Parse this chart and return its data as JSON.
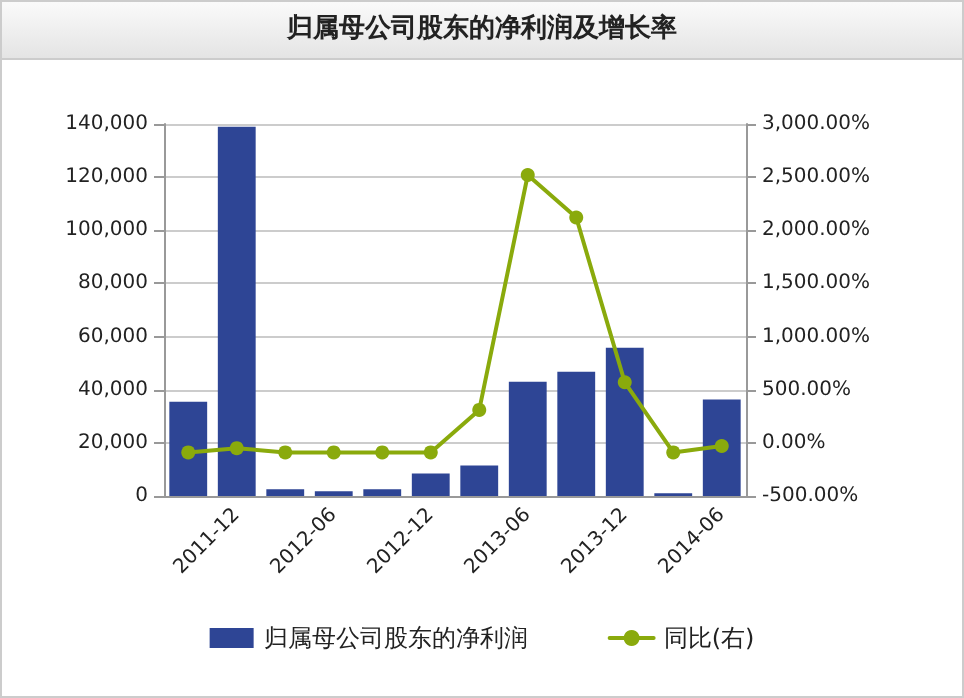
{
  "chart_data": {
    "type": "bar",
    "title": "归属母公司股东的净利润及增长率",
    "categories": [
      null,
      "2011-12",
      null,
      "2012-06",
      null,
      "2012-12",
      null,
      "2013-06",
      null,
      "2013-12",
      null,
      "2014-06"
    ],
    "series": [
      {
        "name": "归属母公司股东的净利润",
        "color": "#2e4595",
        "values": [
          35500,
          139000,
          2500,
          1800,
          2500,
          8500,
          11500,
          43000,
          46800,
          55800,
          1000,
          36300
        ]
      },
      {
        "name": "同比(右)",
        "type": "line",
        "axis": "y2",
        "color": "#8aaa0c",
        "values": [
          -90,
          -50,
          -90,
          -90,
          -90,
          -90,
          310,
          2520,
          2120,
          570,
          -90,
          -30
        ]
      }
    ],
    "ylim": [
      0,
      140000
    ],
    "yticks": [
      {
        "value": 0,
        "label": "0"
      },
      {
        "value": 20000,
        "label": "20,000"
      },
      {
        "value": 40000,
        "label": "40,000"
      },
      {
        "value": 60000,
        "label": "60,000"
      },
      {
        "value": 80000,
        "label": "80,000"
      },
      {
        "value": 100000,
        "label": "100,000"
      },
      {
        "value": 120000,
        "label": "120,000"
      },
      {
        "value": 140000,
        "label": "140,000"
      }
    ],
    "y2lim": [
      -500,
      3000
    ],
    "y2ticks": [
      {
        "value": -500,
        "label": "-500.00%"
      },
      {
        "value": 0,
        "label": "0.00%"
      },
      {
        "value": 500,
        "label": "500.00%"
      },
      {
        "value": 1000,
        "label": "1,000.00%"
      },
      {
        "value": 1500,
        "label": "1,500.00%"
      },
      {
        "value": 2000,
        "label": "2,000.00%"
      },
      {
        "value": 2500,
        "label": "2,500.00%"
      },
      {
        "value": 3000,
        "label": "3,000.00%"
      }
    ],
    "grid": "y",
    "legend": "bottom",
    "marker": "circle",
    "line_style": "solid"
  }
}
